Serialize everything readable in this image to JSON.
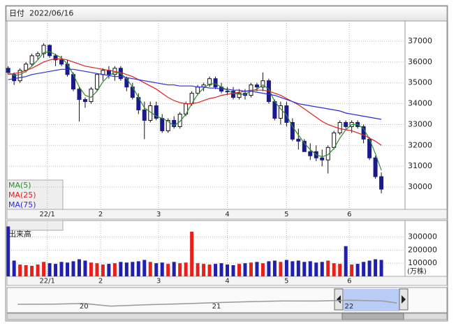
{
  "header": {
    "label": "日付",
    "date": "2022/06/16"
  },
  "chart_data": [
    {
      "type": "candlestick",
      "candles": [
        [
          35700,
          35800,
          35400,
          35500
        ],
        [
          35400,
          35500,
          34900,
          35100
        ],
        [
          35100,
          35700,
          35000,
          35600
        ],
        [
          35600,
          36000,
          35500,
          35900
        ],
        [
          35900,
          36400,
          35800,
          36300
        ],
        [
          36300,
          36500,
          36100,
          36400
        ],
        [
          36400,
          36900,
          36200,
          36800
        ],
        [
          36800,
          36850,
          36200,
          36300
        ],
        [
          36300,
          36400,
          35800,
          36100
        ],
        [
          36100,
          36300,
          35800,
          35900
        ],
        [
          35900,
          36100,
          35300,
          35400
        ],
        [
          35400,
          35500,
          34600,
          34700
        ],
        [
          34700,
          34800,
          33150,
          34200
        ],
        [
          34200,
          34300,
          33800,
          34100
        ],
        [
          34100,
          34800,
          34000,
          34700
        ],
        [
          34700,
          35400,
          34600,
          35400
        ],
        [
          35400,
          35700,
          35100,
          35600
        ],
        [
          35600,
          35800,
          35200,
          35400
        ],
        [
          35400,
          35800,
          35100,
          35700
        ],
        [
          35700,
          35800,
          35100,
          35200
        ],
        [
          35200,
          35300,
          34600,
          34800
        ],
        [
          34800,
          35000,
          34200,
          34300
        ],
        [
          34300,
          34500,
          33500,
          33700
        ],
        [
          33700,
          34100,
          32300,
          33200
        ],
        [
          33200,
          34100,
          33100,
          33900
        ],
        [
          33900,
          34100,
          33200,
          33300
        ],
        [
          33300,
          33500,
          32600,
          32700
        ],
        [
          32700,
          33300,
          32600,
          33200
        ],
        [
          33200,
          33400,
          32800,
          32900
        ],
        [
          32900,
          33600,
          32800,
          33500
        ],
        [
          33500,
          34100,
          33400,
          34000
        ],
        [
          34000,
          34600,
          33900,
          34500
        ],
        [
          34500,
          34900,
          34400,
          34800
        ],
        [
          34800,
          35000,
          34600,
          34900
        ],
        [
          34900,
          35300,
          34800,
          35200
        ],
        [
          35200,
          35300,
          34700,
          34800
        ],
        [
          34800,
          35000,
          34500,
          34600
        ],
        [
          34600,
          34800,
          34400,
          34600
        ],
        [
          34600,
          34800,
          34200,
          34300
        ],
        [
          34300,
          34700,
          34200,
          34500
        ],
        [
          34500,
          34700,
          34200,
          34400
        ],
        [
          34400,
          35000,
          34300,
          34900
        ],
        [
          34900,
          35000,
          34600,
          34800
        ],
        [
          34800,
          35500,
          34600,
          35100
        ],
        [
          35100,
          35200,
          34000,
          34100
        ],
        [
          34100,
          34200,
          33200,
          33300
        ],
        [
          33300,
          34100,
          33000,
          33900
        ],
        [
          33900,
          34100,
          32900,
          33100
        ],
        [
          33100,
          33300,
          32200,
          32300
        ],
        [
          32300,
          32800,
          31800,
          32200
        ],
        [
          32200,
          32300,
          31700,
          31700
        ],
        [
          31700,
          32100,
          31300,
          31500
        ],
        [
          31700,
          32000,
          31250,
          31400
        ],
        [
          31400,
          31800,
          31000,
          31300
        ],
        [
          31300,
          32000,
          30650,
          31900
        ],
        [
          31900,
          32700,
          31800,
          32600
        ],
        [
          32600,
          33200,
          32500,
          33100
        ],
        [
          33100,
          33200,
          32800,
          32900
        ],
        [
          32900,
          33200,
          32600,
          33100
        ],
        [
          33100,
          33200,
          32800,
          32900
        ],
        [
          32900,
          33000,
          32100,
          32300
        ],
        [
          32300,
          32400,
          31300,
          31400
        ],
        [
          31400,
          31500,
          30400,
          30500
        ],
        [
          30500,
          30700,
          29700,
          29900
        ]
      ],
      "up_color": "#ffffff",
      "down_color": "#1a1a8c",
      "xlim": [
        -0.2,
        67
      ],
      "xticks": [
        {
          "value": 6.6,
          "label": "22/1"
        },
        {
          "value": 15.6,
          "label": "2"
        },
        {
          "value": 25.4,
          "label": "3"
        },
        {
          "value": 37,
          "label": "4"
        },
        {
          "value": 47,
          "label": "5"
        },
        {
          "value": 57.6,
          "label": "6"
        }
      ],
      "ylim": [
        28930,
        37970
      ],
      "yticks": [
        30000,
        31000,
        32000,
        33000,
        34000,
        35000,
        36000,
        37000
      ],
      "grid": true,
      "series": [
        {
          "name": "MA(5)",
          "color": "#2e8b2e",
          "values": [
            35500,
            35350,
            35400,
            35550,
            35800,
            36100,
            36450,
            36500,
            36350,
            36200,
            35900,
            35400,
            34800,
            34400,
            34300,
            34600,
            35050,
            35350,
            35500,
            35450,
            35200,
            34800,
            34300,
            33800,
            33600,
            33400,
            33300,
            33150,
            32950,
            33150,
            33500,
            34000,
            34450,
            34750,
            34950,
            34950,
            34800,
            34650,
            34500,
            34450,
            34450,
            34600,
            34700,
            34900,
            34700,
            34100,
            33750,
            33450,
            32900,
            32500,
            32100,
            31800,
            31550,
            31450,
            31550,
            31850,
            32350,
            32750,
            33000,
            33000,
            32800,
            32300,
            31600,
            30800
          ]
        },
        {
          "name": "MA(25)",
          "color": "#e02020",
          "values": [
            35400,
            35450,
            35500,
            35600,
            35700,
            35850,
            36000,
            36100,
            36150,
            36150,
            36100,
            36000,
            35900,
            35800,
            35750,
            35700,
            35650,
            35600,
            35550,
            35500,
            35400,
            35300,
            35150,
            35000,
            34850,
            34700,
            34500,
            34300,
            34150,
            34050,
            34000,
            34000,
            34050,
            34150,
            34250,
            34300,
            34400,
            34450,
            34500,
            34550,
            34600,
            34650,
            34650,
            34650,
            34600,
            34500,
            34400,
            34250,
            34100,
            33950,
            33750,
            33550,
            33350,
            33150,
            33000,
            32900,
            32800,
            32750,
            32700,
            32600,
            32500,
            32350,
            32200,
            32000
          ]
        },
        {
          "name": "MA(75)",
          "color": "#2a2ae0",
          "values": [
            35150,
            35200,
            35250,
            35300,
            35400,
            35450,
            35500,
            35550,
            35600,
            35650,
            35650,
            35650,
            35600,
            35550,
            35500,
            35450,
            35400,
            35350,
            35300,
            35300,
            35250,
            35200,
            35150,
            35100,
            35050,
            35000,
            34950,
            34900,
            34900,
            34850,
            34850,
            34850,
            34800,
            34800,
            34750,
            34750,
            34700,
            34700,
            34650,
            34650,
            34600,
            34600,
            34550,
            34500,
            34450,
            34400,
            34300,
            34200,
            34100,
            34000,
            33950,
            33900,
            33850,
            33800,
            33750,
            33700,
            33650,
            33550,
            33500,
            33450,
            33400,
            33350,
            33300,
            33250
          ]
        }
      ]
    },
    {
      "type": "bar",
      "title": "出来高",
      "unit_label": "(万株)",
      "values": [
        380000,
        120000,
        90000,
        85000,
        80000,
        90000,
        110000,
        100000,
        95000,
        110000,
        105000,
        115000,
        130000,
        120000,
        105000,
        100000,
        90000,
        95000,
        100000,
        110000,
        105000,
        110000,
        115000,
        125000,
        110000,
        100000,
        105000,
        95000,
        110000,
        100000,
        105000,
        340000,
        100000,
        95000,
        90000,
        95000,
        100000,
        90000,
        85000,
        95000,
        100000,
        105000,
        110000,
        100000,
        115000,
        120000,
        110000,
        125000,
        115000,
        120000,
        110000,
        115000,
        105000,
        110000,
        120000,
        100000,
        95000,
        230000,
        90000,
        95000,
        110000,
        120000,
        130000,
        125000
      ],
      "up_color": "#e8201c",
      "down_color": "#2020b0",
      "xlim": [
        -0.2,
        67
      ],
      "xticks": [
        {
          "value": 6.6,
          "label": "22/1"
        },
        {
          "value": 15.6,
          "label": "2"
        },
        {
          "value": 25.4,
          "label": "3"
        },
        {
          "value": 37,
          "label": "4"
        },
        {
          "value": 47,
          "label": "5"
        },
        {
          "value": 57.6,
          "label": "6"
        }
      ],
      "ylim": [
        0,
        425000
      ],
      "yticks": [
        100000,
        200000,
        300000
      ],
      "grid": true
    }
  ],
  "navigator": {
    "type": "line",
    "color": "#999999",
    "x": [
      2019.5,
      2019.75,
      2020.0,
      2020.2,
      2020.5,
      2020.75,
      2021.0,
      2021.25,
      2021.5,
      2021.75,
      2022.0,
      2022.25,
      2022.36
    ],
    "values": [
      26600,
      26900,
      28500,
      22300,
      25800,
      27800,
      30600,
      33000,
      34500,
      34300,
      36300,
      34700,
      29900
    ],
    "xlim": [
      2019.43,
      2022.38
    ],
    "xticks": [
      {
        "value": 2020,
        "label": "20"
      },
      {
        "value": 2021,
        "label": "21"
      },
      {
        "value": 2022,
        "label": "22"
      }
    ],
    "ylim": [
      10000,
      60000
    ]
  }
}
